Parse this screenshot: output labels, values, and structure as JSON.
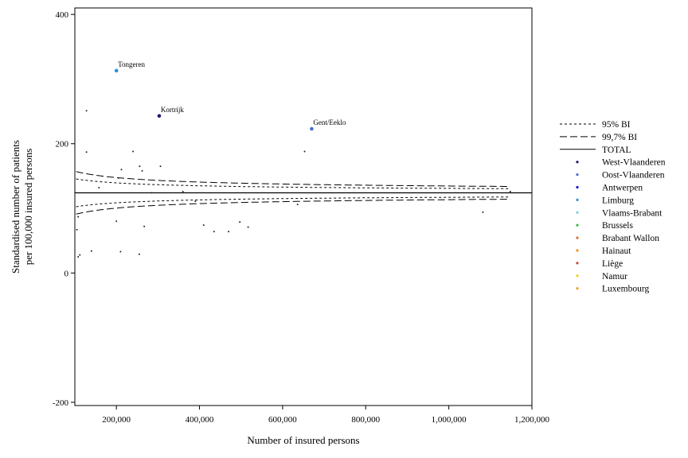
{
  "chart_data": {
    "type": "scatter",
    "title": "",
    "xlabel": "Number of insured persons",
    "ylabel_lines": [
      "Standardised number of patients",
      "per 100,000 insured persons"
    ],
    "xlim": [
      100000,
      1200000
    ],
    "ylim": [
      -205,
      410
    ],
    "xticks": [
      200000,
      400000,
      600000,
      800000,
      1000000,
      1200000
    ],
    "xtick_labels": [
      "200,000",
      "400,000",
      "600,000",
      "800,000",
      "1,000,000",
      "1,200,000"
    ],
    "yticks": [
      -200,
      0,
      200,
      400
    ],
    "ytick_labels": [
      "-200",
      "0",
      "200",
      "400"
    ],
    "total_rate": 124,
    "legend": {
      "position": "right",
      "lines": [
        {
          "label": "95% BI",
          "style": "short-dash"
        },
        {
          "label": "99,7% BI",
          "style": "long-dash"
        },
        {
          "label": "TOTAL",
          "style": "solid"
        }
      ],
      "regions": [
        {
          "label": "West-Vlaanderen",
          "color": "#1a1a6e"
        },
        {
          "label": "Oost-Vlaanderen",
          "color": "#4a6fd0"
        },
        {
          "label": "Antwerpen",
          "color": "#1515d8"
        },
        {
          "label": "Limburg",
          "color": "#2f8fd8"
        },
        {
          "label": "Vlaams-Brabant",
          "color": "#7fc8e8"
        },
        {
          "label": "Brussels",
          "color": "#3cb84a"
        },
        {
          "label": "Brabant Wallon",
          "color": "#d8703a"
        },
        {
          "label": "Hainaut",
          "color": "#f0901a"
        },
        {
          "label": "Liège",
          "color": "#c0503a"
        },
        {
          "label": "Namur",
          "color": "#f0d010"
        },
        {
          "label": "Luxembourg",
          "color": "#f0a020"
        }
      ]
    },
    "labeled_points": [
      {
        "label": "Tongeren",
        "x": 200000,
        "y": 313,
        "color": "#2f8fd8"
      },
      {
        "label": "Kortrijk",
        "x": 303000,
        "y": 243,
        "color": "#1a1a6e"
      },
      {
        "label": "Gent/Eeklo",
        "x": 670000,
        "y": 223,
        "color": "#4a6fd0"
      }
    ],
    "points": [
      {
        "x": 128000,
        "y": 251
      },
      {
        "x": 128000,
        "y": 187
      },
      {
        "x": 158000,
        "y": 132
      },
      {
        "x": 205000,
        "y": 147
      },
      {
        "x": 212000,
        "y": 160
      },
      {
        "x": 240000,
        "y": 188
      },
      {
        "x": 256000,
        "y": 165
      },
      {
        "x": 262000,
        "y": 158
      },
      {
        "x": 306000,
        "y": 165
      },
      {
        "x": 285000,
        "y": 124
      },
      {
        "x": 360000,
        "y": 126
      },
      {
        "x": 653000,
        "y": 188
      },
      {
        "x": 1148000,
        "y": 126
      },
      {
        "x": 108000,
        "y": 87
      },
      {
        "x": 105000,
        "y": 67
      },
      {
        "x": 108000,
        "y": 25
      },
      {
        "x": 112000,
        "y": 28
      },
      {
        "x": 140000,
        "y": 34
      },
      {
        "x": 200000,
        "y": 80
      },
      {
        "x": 210000,
        "y": 33
      },
      {
        "x": 255000,
        "y": 29
      },
      {
        "x": 267000,
        "y": 72
      },
      {
        "x": 390000,
        "y": 111
      },
      {
        "x": 410000,
        "y": 74
      },
      {
        "x": 435000,
        "y": 64
      },
      {
        "x": 470000,
        "y": 64
      },
      {
        "x": 497000,
        "y": 79
      },
      {
        "x": 517000,
        "y": 71
      },
      {
        "x": 636000,
        "y": 106
      },
      {
        "x": 1082000,
        "y": 94
      }
    ]
  }
}
